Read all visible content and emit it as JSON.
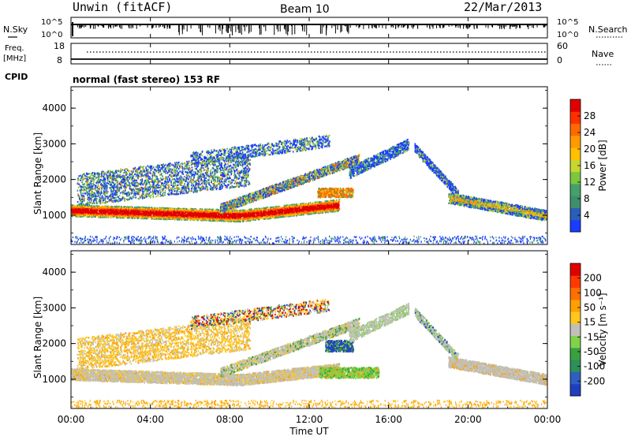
{
  "header": {
    "station": "Unwin (fitACF)",
    "beam": "Beam 10",
    "date": "22/Mar/2013"
  },
  "noise_panel": {
    "left_label": "N.Sky",
    "left_ticks": [
      "10^5",
      "10^0"
    ],
    "right_ticks": [
      "10^5",
      "10^0"
    ],
    "right_label": "N.Search"
  },
  "freq_panel": {
    "left_label_line1": "Freq.",
    "left_label_line2": "[MHz]",
    "left_ticks": [
      "18",
      "8"
    ],
    "right_ticks": [
      "60",
      "0"
    ],
    "right_label": "Nave"
  },
  "cpid": {
    "label": "CPID",
    "text": "normal (fast stereo) 153 RF"
  },
  "x_axis": {
    "label": "Time UT",
    "ticks": [
      "00:00",
      "04:00",
      "08:00",
      "12:00",
      "16:00",
      "20:00",
      "00:00"
    ],
    "range_hours": [
      0,
      24
    ]
  },
  "chart_data": [
    {
      "type": "heatmap",
      "title": "",
      "xlabel": "",
      "ylabel": "Slant Range [km]",
      "x_range_hours": [
        0,
        24
      ],
      "ylim": [
        180,
        4600
      ],
      "y_ticks": [
        "1000",
        "2000",
        "3000",
        "4000"
      ],
      "colorbar": {
        "label": "Power [dB]",
        "ticks": [
          "4",
          "8",
          "12",
          "16",
          "20",
          "24",
          "28"
        ],
        "colors": [
          "#1a3cff",
          "#2a5fb8",
          "#3f8f6c",
          "#45a06a",
          "#7cc740",
          "#c8d630",
          "#ffc000",
          "#ff9a00",
          "#ff6a00",
          "#ff3000",
          "#e00000"
        ]
      }
    },
    {
      "type": "heatmap",
      "title": "",
      "xlabel": "Time UT",
      "ylabel": "Slant Range [km]",
      "x_range_hours": [
        0,
        24
      ],
      "ylim": [
        180,
        4600
      ],
      "y_ticks": [
        "1000",
        "2000",
        "3000",
        "4000"
      ],
      "colorbar": {
        "label": "Velocity [m s⁻¹]",
        "ticks": [
          "200",
          "100",
          "50",
          "15",
          "-15",
          "-50",
          "-100",
          "-200"
        ],
        "colors": [
          "#1f3fbf",
          "#2e5fc0",
          "#2e8f5a",
          "#3aa040",
          "#7fd24a",
          "#c0c0b8",
          "#ffc820",
          "#ffa000",
          "#ff7000",
          "#ff3a00",
          "#e00000"
        ]
      }
    }
  ]
}
